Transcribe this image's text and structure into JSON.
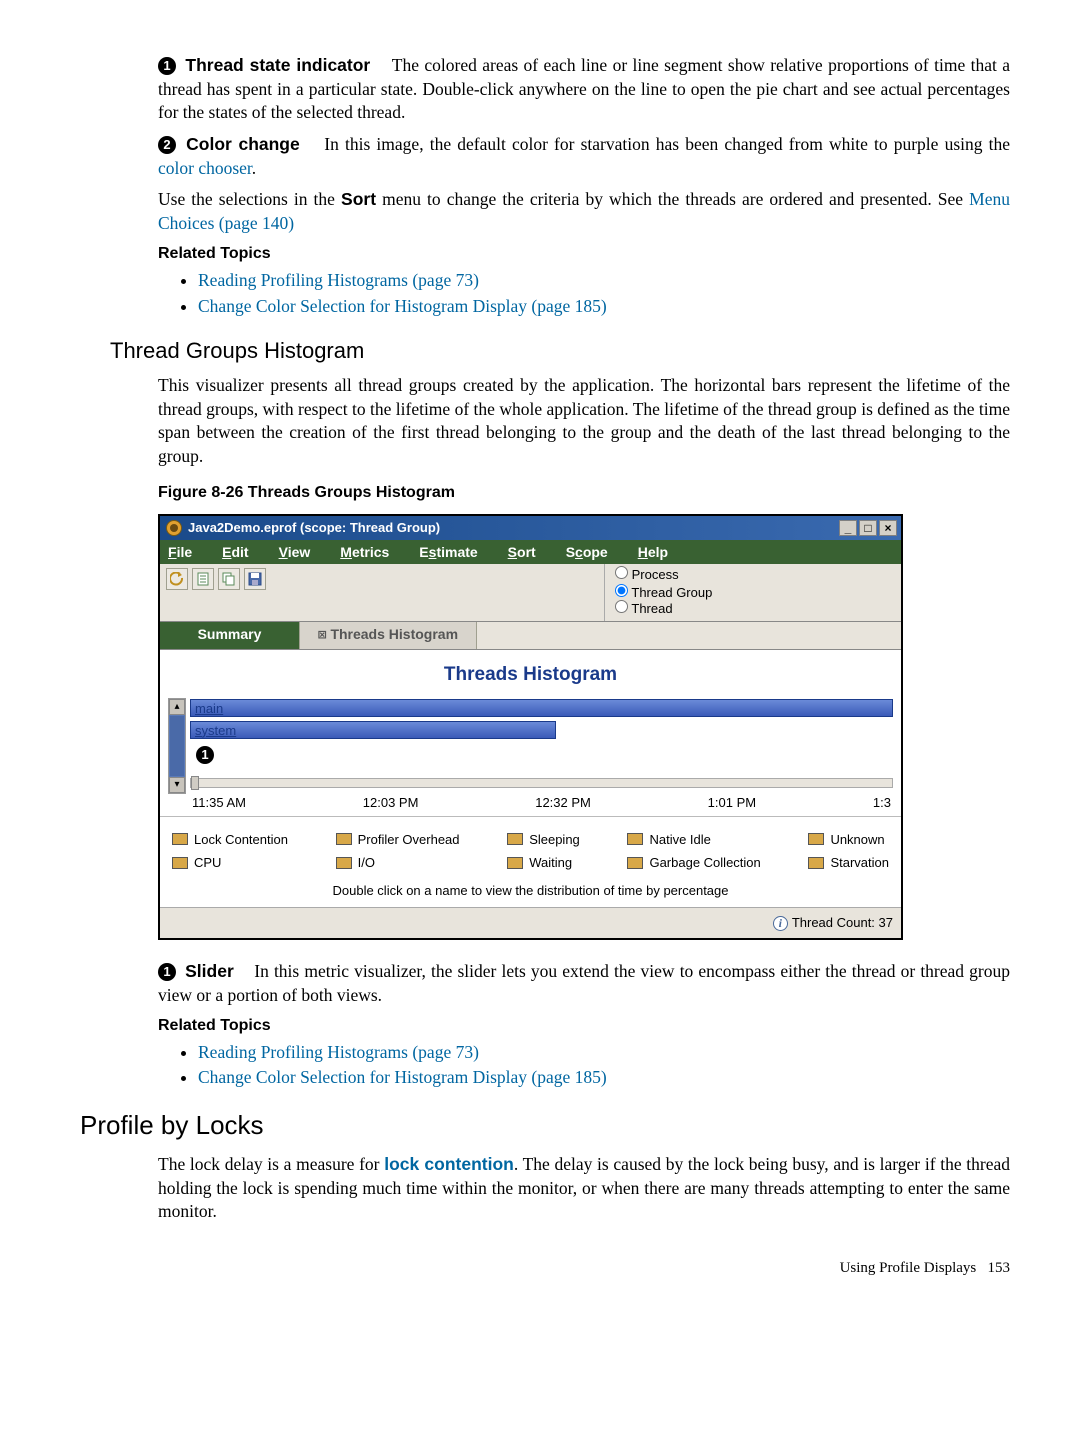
{
  "callout1": {
    "num": "1",
    "title": "Thread state indicator",
    "text": "The colored areas of each line or line segment show relative proportions of time that a thread has spent in a particular state. Double-click anywhere on the line to open the pie chart and see actual percentages for the states of the selected thread."
  },
  "callout2": {
    "num": "2",
    "title": "Color change",
    "text_pre": "In this image, the default color for starvation has been changed from white to purple using the ",
    "link": "color chooser",
    "text_post": "."
  },
  "sort_para": {
    "pre": "Use the selections in the ",
    "bold": "Sort",
    "mid": " menu to change the criteria by which the threads are ordered and presented. See ",
    "link": "Menu Choices (page 140)"
  },
  "related_label": "Related Topics",
  "related1": [
    "Reading Profiling Histograms (page 73)",
    "Change Color Selection for Histogram Display (page 185)"
  ],
  "section1_title": "Thread Groups Histogram",
  "section1_body": "This visualizer presents all thread groups created by the application. The horizontal bars represent the lifetime of the thread groups, with respect to the lifetime of the whole application. The lifetime of the thread group is defined as the time span between the creation of the first thread belonging to the group and the death of the last thread belonging to the group.",
  "fig_caption": "Figure 8-26 Threads Groups Histogram",
  "win": {
    "title": "Java2Demo.eprof (scope: Thread Group)",
    "menus": [
      "File",
      "Edit",
      "View",
      "Metrics",
      "Estimate",
      "Sort",
      "Scope",
      "Help"
    ],
    "scope_options": [
      "Process",
      "Thread Group",
      "Thread"
    ],
    "scope_selected": 1,
    "tabs": {
      "summary": "Summary",
      "histogram": "Threads Histogram"
    },
    "chart_title": "Threads Histogram",
    "bars": [
      {
        "label": "main",
        "width_pct": 100
      },
      {
        "label": "system",
        "width_pct": 52
      }
    ],
    "callout_num": "1",
    "time_ticks": [
      "11:35 AM",
      "12:03 PM",
      "12:32 PM",
      "1:01 PM",
      "1:3"
    ],
    "legend": [
      {
        "label": "Lock Contention",
        "color": "#d8a848"
      },
      {
        "label": "Profiler Overhead",
        "color": "#d8a848"
      },
      {
        "label": "Sleeping",
        "color": "#d8a848"
      },
      {
        "label": "Native Idle",
        "color": "#d8a848"
      },
      {
        "label": "Unknown",
        "color": "#d8a848"
      },
      {
        "label": "CPU",
        "color": "#d8a848"
      },
      {
        "label": "I/O",
        "color": "#d8a848"
      },
      {
        "label": "Waiting",
        "color": "#d8a848"
      },
      {
        "label": "Garbage Collection",
        "color": "#d8a848"
      },
      {
        "label": "Starvation",
        "color": "#d8a848"
      }
    ],
    "legend_note": "Double click on a name to view the distribution of time by percentage",
    "status": "Thread Count: 37"
  },
  "callout3": {
    "num": "1",
    "title": "Slider",
    "text": "In this metric visualizer, the slider lets you extend the view to encompass either the thread or thread group view or a portion of both views."
  },
  "related2": [
    "Reading Profiling Histograms (page 73)",
    "Change Color Selection for Histogram Display (page 185)"
  ],
  "section2_title": "Profile by Locks",
  "section2_body": {
    "pre": "The lock delay is a measure for ",
    "bold_link": "lock contention",
    "post": ". The delay is caused by the lock being busy, and is larger if the thread holding the lock is spending much time within the monitor, or when there are many threads attempting to enter the same monitor."
  },
  "footer": {
    "label": "Using Profile Displays",
    "page": "153"
  }
}
